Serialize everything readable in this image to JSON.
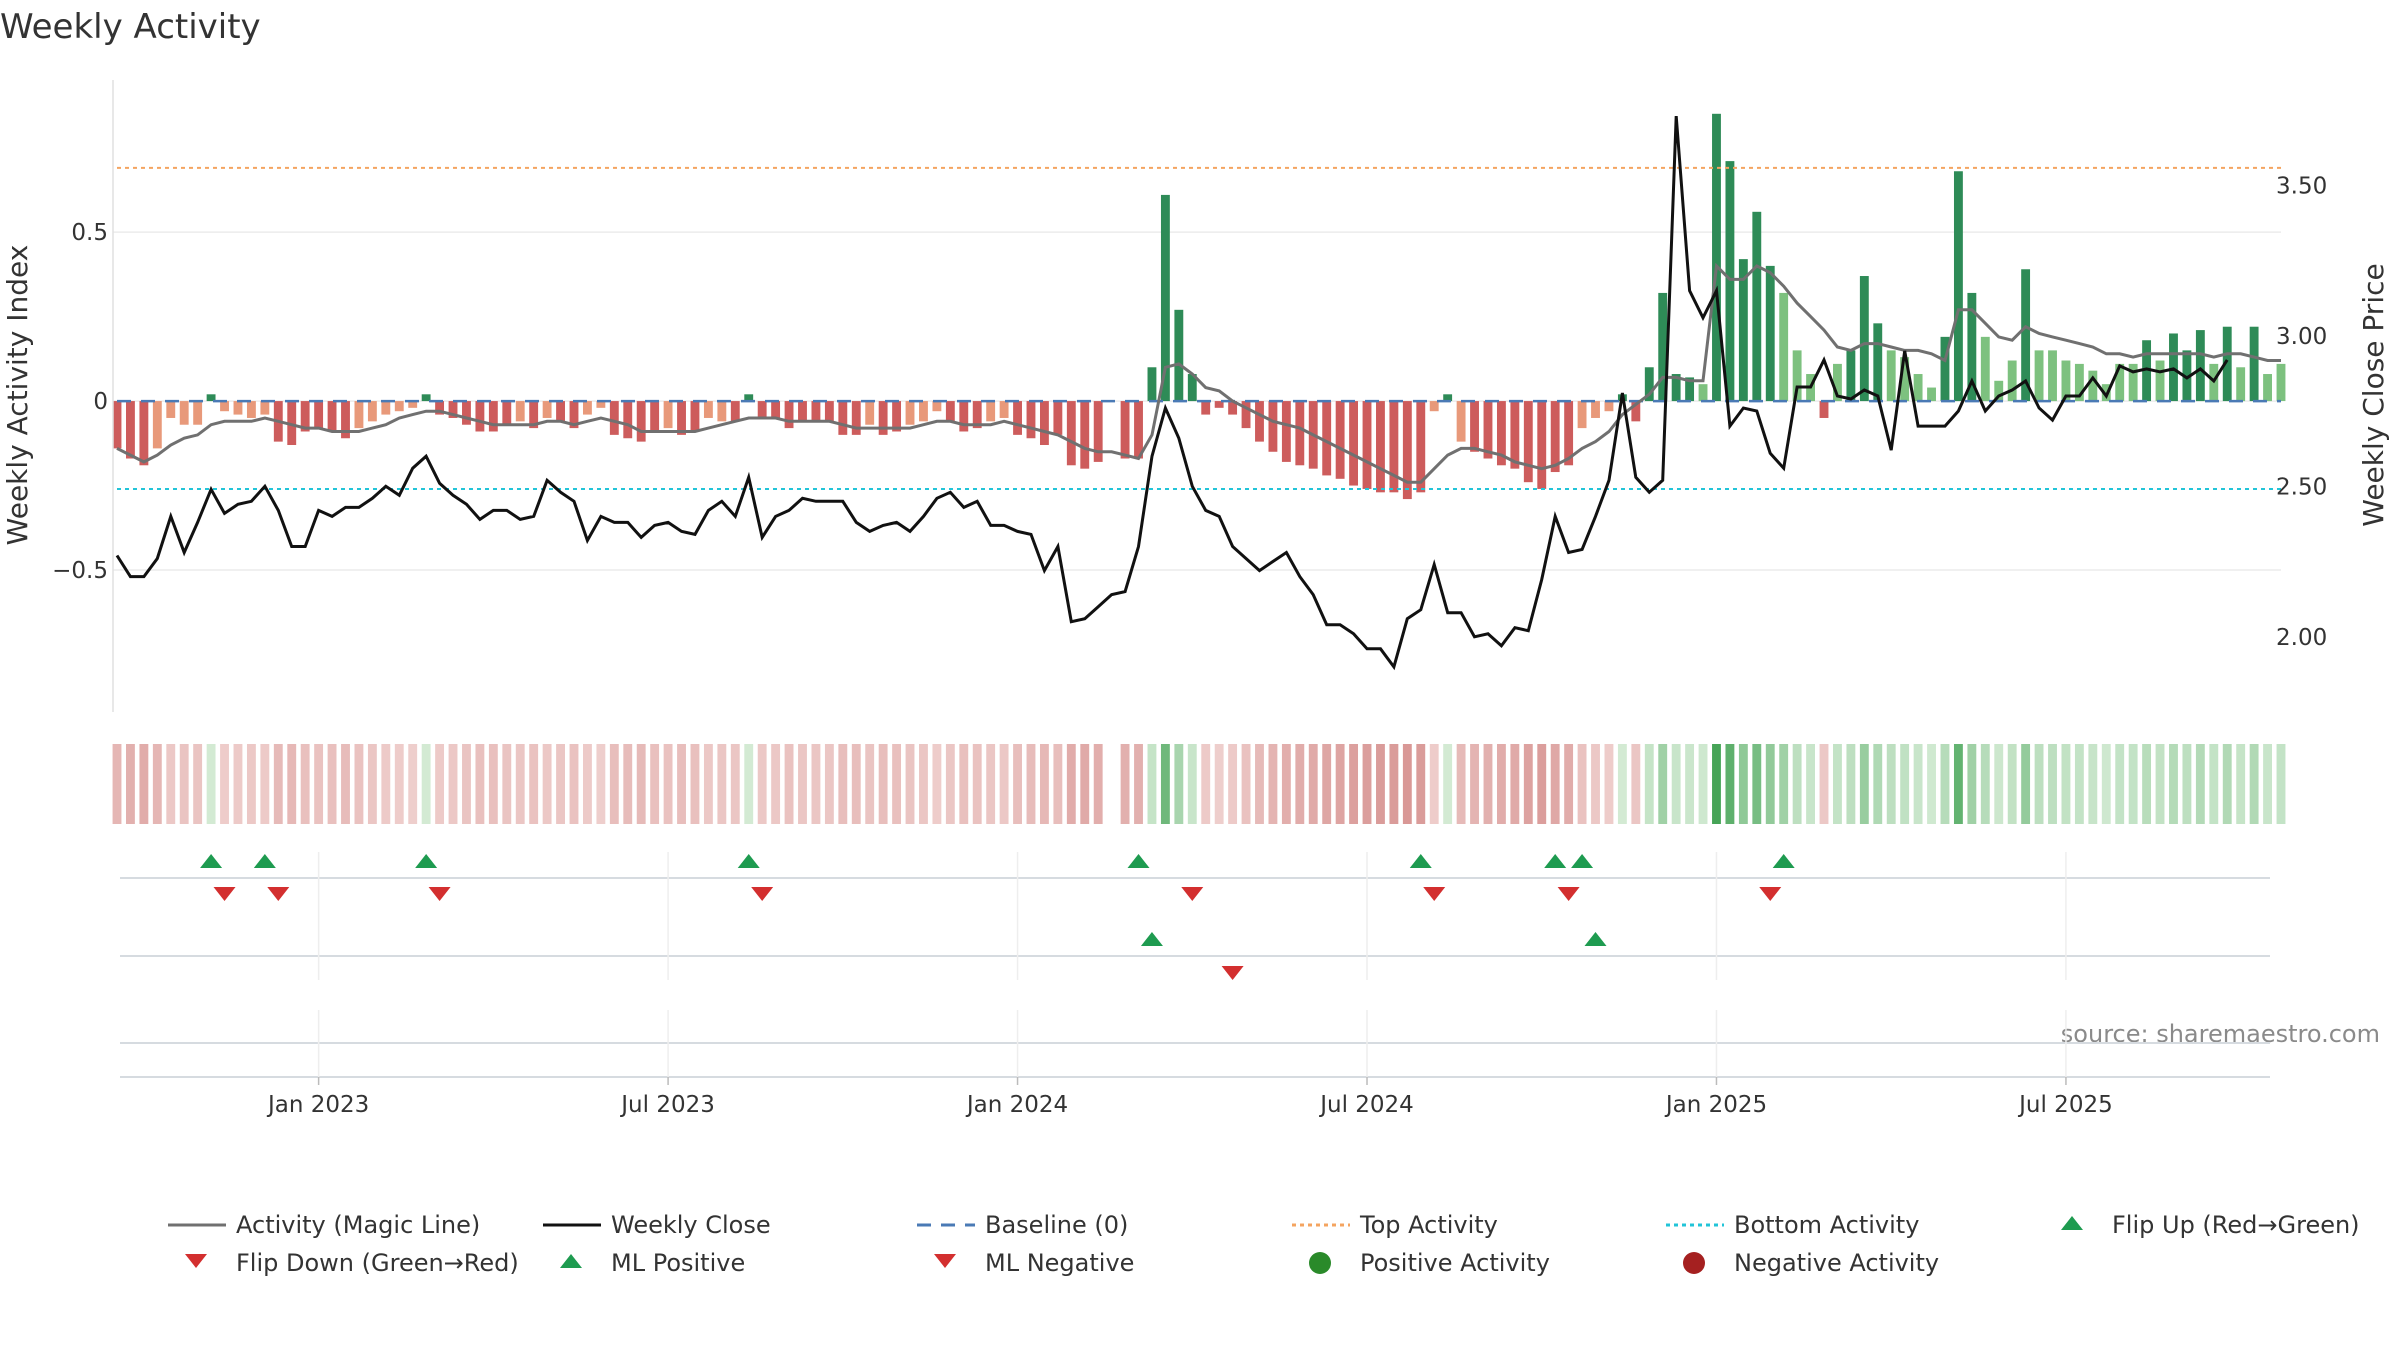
{
  "chart_data": {
    "type": "bar+line",
    "title": "Weekly Activity",
    "ylabel_left": "Weekly Activity Index",
    "ylabel_right": "Weekly Close Price",
    "source": "source: sharemaestro.com",
    "y_left_range": [
      -0.92,
      0.95
    ],
    "y_left_ticks": [
      {
        "v": 0.5,
        "label": "0.5"
      },
      {
        "v": 0,
        "label": "0"
      },
      {
        "v": -0.5,
        "label": "−0.5"
      }
    ],
    "y_right_range": [
      1.75,
      3.85
    ],
    "y_right_ticks": [
      {
        "v": 3.5,
        "label": "3.50"
      },
      {
        "v": 3.0,
        "label": "3.00"
      },
      {
        "v": 2.5,
        "label": "2.50"
      },
      {
        "v": 2.0,
        "label": "2.00"
      }
    ],
    "top_activity": 0.69,
    "bottom_activity": -0.26,
    "x_ticks": [
      {
        "w": 15,
        "label": "Jan 2023"
      },
      {
        "w": 41,
        "label": "Jul 2023"
      },
      {
        "w": 67,
        "label": "Jan 2024"
      },
      {
        "w": 93,
        "label": "Jul 2024"
      },
      {
        "w": 119,
        "label": "Jan 2025"
      },
      {
        "w": 145,
        "label": "Jul 2025"
      }
    ],
    "activity": [
      -0.14,
      -0.17,
      -0.19,
      -0.14,
      -0.05,
      -0.07,
      -0.07,
      0.02,
      -0.03,
      -0.04,
      -0.05,
      -0.04,
      -0.12,
      -0.13,
      -0.09,
      -0.08,
      -0.09,
      -0.11,
      -0.08,
      -0.06,
      -0.04,
      -0.03,
      -0.02,
      0.02,
      -0.04,
      -0.05,
      -0.07,
      -0.09,
      -0.09,
      -0.07,
      -0.06,
      -0.08,
      -0.05,
      -0.06,
      -0.08,
      -0.04,
      -0.02,
      -0.1,
      -0.11,
      -0.12,
      -0.09,
      -0.08,
      -0.1,
      -0.09,
      -0.05,
      -0.06,
      -0.06,
      0.02,
      -0.05,
      -0.05,
      -0.08,
      -0.06,
      -0.06,
      -0.06,
      -0.1,
      -0.1,
      -0.07,
      -0.1,
      -0.09,
      -0.07,
      -0.06,
      -0.03,
      -0.06,
      -0.09,
      -0.08,
      -0.06,
      -0.05,
      -0.1,
      -0.11,
      -0.13,
      -0.1,
      -0.19,
      -0.2,
      -0.18,
      0,
      -0.17,
      -0.17,
      0.1,
      0.61,
      0.27,
      0.08,
      -0.04,
      -0.02,
      -0.04,
      -0.08,
      -0.12,
      -0.15,
      -0.18,
      -0.19,
      -0.2,
      -0.22,
      -0.23,
      -0.25,
      -0.26,
      -0.27,
      -0.27,
      -0.29,
      -0.27,
      -0.03,
      0.02,
      -0.12,
      -0.15,
      -0.17,
      -0.19,
      -0.2,
      -0.24,
      -0.26,
      -0.21,
      -0.19,
      -0.08,
      -0.05,
      -0.03,
      0.02,
      -0.06,
      0.1,
      0.32,
      0.08,
      0.07,
      0.05,
      0.85,
      0.71,
      0.42,
      0.56,
      0.4,
      0.32,
      0.15,
      0.08,
      -0.05,
      0.11,
      0.15,
      0.37,
      0.23,
      0.15,
      0.13,
      0.08,
      0.04,
      0.19,
      0.68,
      0.32,
      0.19,
      0.06,
      0.12,
      0.39,
      0.15,
      0.15,
      0.12,
      0.11,
      0.09,
      0.05,
      0.11,
      0.11,
      0.18,
      0.12,
      0.2,
      0.15,
      0.21,
      0.11,
      0.22,
      0.1,
      0.22,
      0.08,
      0.11
    ],
    "magic_line": [
      -0.14,
      -0.16,
      -0.18,
      -0.16,
      -0.13,
      -0.11,
      -0.1,
      -0.07,
      -0.06,
      -0.06,
      -0.06,
      -0.05,
      -0.06,
      -0.07,
      -0.08,
      -0.08,
      -0.09,
      -0.09,
      -0.09,
      -0.08,
      -0.07,
      -0.05,
      -0.04,
      -0.03,
      -0.03,
      -0.04,
      -0.05,
      -0.06,
      -0.07,
      -0.07,
      -0.07,
      -0.07,
      -0.06,
      -0.06,
      -0.07,
      -0.06,
      -0.05,
      -0.06,
      -0.07,
      -0.09,
      -0.09,
      -0.09,
      -0.09,
      -0.09,
      -0.08,
      -0.07,
      -0.06,
      -0.05,
      -0.05,
      -0.05,
      -0.06,
      -0.06,
      -0.06,
      -0.06,
      -0.07,
      -0.08,
      -0.08,
      -0.08,
      -0.08,
      -0.08,
      -0.07,
      -0.06,
      -0.06,
      -0.07,
      -0.07,
      -0.07,
      -0.06,
      -0.07,
      -0.08,
      -0.09,
      -0.1,
      -0.12,
      -0.14,
      -0.15,
      -0.15,
      -0.16,
      -0.17,
      -0.1,
      0.1,
      0.11,
      0.08,
      0.04,
      0.03,
      0.0,
      -0.02,
      -0.04,
      -0.06,
      -0.07,
      -0.08,
      -0.1,
      -0.12,
      -0.14,
      -0.16,
      -0.18,
      -0.2,
      -0.22,
      -0.24,
      -0.24,
      -0.2,
      -0.16,
      -0.14,
      -0.14,
      -0.15,
      -0.16,
      -0.18,
      -0.19,
      -0.2,
      -0.19,
      -0.17,
      -0.14,
      -0.12,
      -0.09,
      -0.04,
      -0.01,
      0.02,
      0.07,
      0.07,
      0.06,
      0.06,
      0.4,
      0.36,
      0.36,
      0.4,
      0.38,
      0.34,
      0.29,
      0.25,
      0.21,
      0.16,
      0.15,
      0.17,
      0.17,
      0.16,
      0.15,
      0.15,
      0.14,
      0.12,
      0.27,
      0.27,
      0.23,
      0.19,
      0.18,
      0.22,
      0.2,
      0.19,
      0.18,
      0.17,
      0.16,
      0.14,
      0.14,
      0.13,
      0.14,
      0.14,
      0.14,
      0.14,
      0.14,
      0.13,
      0.14,
      0.14,
      0.13,
      0.12,
      0.12
    ],
    "weekly_close": [
      2.27,
      2.2,
      2.2,
      2.26,
      2.4,
      2.28,
      2.38,
      2.49,
      2.41,
      2.44,
      2.45,
      2.5,
      2.42,
      2.3,
      2.3,
      2.42,
      2.4,
      2.43,
      2.43,
      2.46,
      2.5,
      2.47,
      2.56,
      2.6,
      2.51,
      2.47,
      2.44,
      2.39,
      2.42,
      2.42,
      2.39,
      2.4,
      2.52,
      2.48,
      2.45,
      2.32,
      2.4,
      2.38,
      2.38,
      2.33,
      2.37,
      2.38,
      2.35,
      2.34,
      2.42,
      2.45,
      2.4,
      2.53,
      2.33,
      2.4,
      2.42,
      2.46,
      2.45,
      2.45,
      2.45,
      2.38,
      2.35,
      2.37,
      2.38,
      2.35,
      2.4,
      2.46,
      2.48,
      2.43,
      2.45,
      2.37,
      2.37,
      2.35,
      2.34,
      2.22,
      2.3,
      2.05,
      2.06,
      2.1,
      2.14,
      2.15,
      2.3,
      2.6,
      2.76,
      2.66,
      2.5,
      2.42,
      2.4,
      2.3,
      2.26,
      2.22,
      2.25,
      2.28,
      2.2,
      2.14,
      2.04,
      2.04,
      2.01,
      1.96,
      1.96,
      1.9,
      2.06,
      2.09,
      2.24,
      2.08,
      2.08,
      2.0,
      2.01,
      1.97,
      2.03,
      2.02,
      2.19,
      2.4,
      2.28,
      2.29,
      2.4,
      2.52,
      2.81,
      2.53,
      2.48,
      2.52,
      3.73,
      3.15,
      3.06,
      3.15,
      2.7,
      2.76,
      2.75,
      2.61,
      2.56,
      2.83,
      2.83,
      2.92,
      2.8,
      2.79,
      2.82,
      2.8,
      2.62,
      2.95,
      2.7,
      2.7,
      2.7,
      2.75,
      2.85,
      2.75,
      2.8,
      2.82,
      2.85,
      2.76,
      2.72,
      2.8,
      2.8,
      2.86,
      2.8,
      2.9,
      2.88,
      2.89,
      2.88,
      2.89,
      2.86,
      2.89,
      2.85,
      2.92
    ],
    "baseline": 0,
    "flip_up_weeks": [
      7,
      11,
      23,
      47,
      76,
      97,
      107,
      109,
      124
    ],
    "flip_down_weeks": [
      8,
      12,
      24,
      48,
      80,
      98,
      108,
      123
    ],
    "ml_positive_weeks": [
      77,
      110
    ],
    "ml_negative_weeks": [
      83
    ],
    "legend": [
      "Activity (Magic Line)",
      "Weekly Close",
      "Baseline (0)",
      "Top Activity",
      "Bottom Activity",
      "Flip Up (Red→Green)",
      "Flip Down (Green→Red)",
      "ML Positive",
      "ML Negative",
      "Positive Activity",
      "Negative Activity"
    ],
    "colors": {
      "pos_dark": "#2e8b57",
      "pos_light": "#7dc17f",
      "neg_dark": "#cd5c5c",
      "neg_light": "#e8997a",
      "magic_line": "#707070",
      "close": "#111111",
      "baseline": "#4a7ab5",
      "top": "#f4a460",
      "bottom": "#22c4d8",
      "flip_up": "#1e9b50",
      "flip_down": "#d32f2f",
      "pos_dot": "#2a8a2a",
      "neg_dot": "#a52020"
    }
  }
}
